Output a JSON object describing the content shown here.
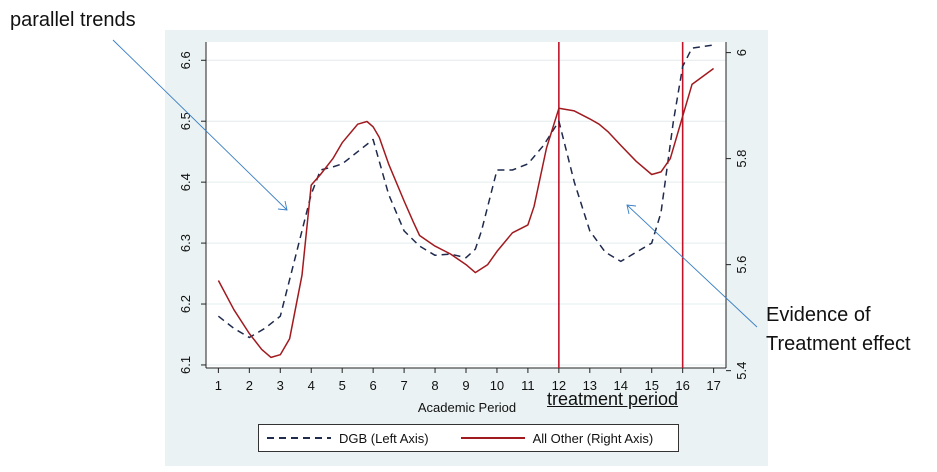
{
  "annotations": {
    "top_left": "parallel trends",
    "right_line1": "Evidence of",
    "right_line2": "Treatment effect",
    "treatment_label": "treatment period"
  },
  "chart_data": {
    "type": "line",
    "xlabel": "Academic Period",
    "x_ticks": [
      1,
      2,
      3,
      4,
      5,
      6,
      7,
      8,
      9,
      10,
      11,
      12,
      13,
      14,
      15,
      16,
      17
    ],
    "xlim": [
      0.6,
      17.4
    ],
    "left_axis": {
      "ylim": [
        6.095,
        6.63
      ],
      "ticks": [
        6.1,
        6.2,
        6.3,
        6.4,
        6.5,
        6.6
      ]
    },
    "right_axis": {
      "ylim": [
        5.405,
        6.02
      ],
      "ticks": [
        "5.4",
        "5.6",
        "5.8",
        "6"
      ]
    },
    "vertical_lines": [
      12,
      16
    ],
    "series": [
      {
        "name": "DGB (Left Axis)",
        "axis": "left",
        "style": "dashed",
        "color": "#1f2a4d",
        "points": [
          [
            1,
            6.18
          ],
          [
            1.5,
            6.16
          ],
          [
            2,
            6.145
          ],
          [
            2.5,
            6.16
          ],
          [
            3,
            6.18
          ],
          [
            3.5,
            6.28
          ],
          [
            4,
            6.38
          ],
          [
            4.3,
            6.42
          ],
          [
            4.7,
            6.425
          ],
          [
            5,
            6.43
          ],
          [
            5.5,
            6.45
          ],
          [
            6,
            6.47
          ],
          [
            6.5,
            6.38
          ],
          [
            7,
            6.32
          ],
          [
            7.5,
            6.295
          ],
          [
            8,
            6.28
          ],
          [
            8.5,
            6.282
          ],
          [
            9,
            6.276
          ],
          [
            9.3,
            6.29
          ],
          [
            9.5,
            6.32
          ],
          [
            10,
            6.42
          ],
          [
            10.5,
            6.42
          ],
          [
            11,
            6.43
          ],
          [
            11.5,
            6.46
          ],
          [
            12,
            6.5
          ],
          [
            12.5,
            6.4
          ],
          [
            13,
            6.32
          ],
          [
            13.5,
            6.285
          ],
          [
            14,
            6.27
          ],
          [
            14.5,
            6.285
          ],
          [
            15,
            6.3
          ],
          [
            15.3,
            6.35
          ],
          [
            15.7,
            6.5
          ],
          [
            16,
            6.59
          ],
          [
            16.3,
            6.62
          ],
          [
            17,
            6.625
          ]
        ]
      },
      {
        "name": "All Other (Right Axis)",
        "axis": "right",
        "style": "solid",
        "color": "#a11a1f",
        "points": [
          [
            1,
            5.57
          ],
          [
            1.5,
            5.515
          ],
          [
            2,
            5.47
          ],
          [
            2.4,
            5.44
          ],
          [
            2.7,
            5.425
          ],
          [
            3,
            5.43
          ],
          [
            3.3,
            5.46
          ],
          [
            3.7,
            5.58
          ],
          [
            4,
            5.75
          ],
          [
            4.3,
            5.77
          ],
          [
            4.7,
            5.8
          ],
          [
            5,
            5.83
          ],
          [
            5.5,
            5.865
          ],
          [
            5.8,
            5.87
          ],
          [
            6,
            5.86
          ],
          [
            6.2,
            5.84
          ],
          [
            6.5,
            5.79
          ],
          [
            7,
            5.72
          ],
          [
            7.3,
            5.68
          ],
          [
            7.5,
            5.655
          ],
          [
            8,
            5.635
          ],
          [
            8.5,
            5.62
          ],
          [
            9,
            5.6
          ],
          [
            9.3,
            5.585
          ],
          [
            9.7,
            5.6
          ],
          [
            10,
            5.625
          ],
          [
            10.5,
            5.66
          ],
          [
            11,
            5.675
          ],
          [
            11.2,
            5.71
          ],
          [
            11.6,
            5.82
          ],
          [
            12,
            5.895
          ],
          [
            12.5,
            5.89
          ],
          [
            13,
            5.875
          ],
          [
            13.3,
            5.865
          ],
          [
            13.6,
            5.85
          ],
          [
            14,
            5.825
          ],
          [
            14.5,
            5.795
          ],
          [
            15,
            5.77
          ],
          [
            15.3,
            5.775
          ],
          [
            15.6,
            5.8
          ],
          [
            16,
            5.88
          ],
          [
            16.3,
            5.94
          ],
          [
            17,
            5.97
          ]
        ]
      }
    ],
    "legend_position": "bottom"
  }
}
